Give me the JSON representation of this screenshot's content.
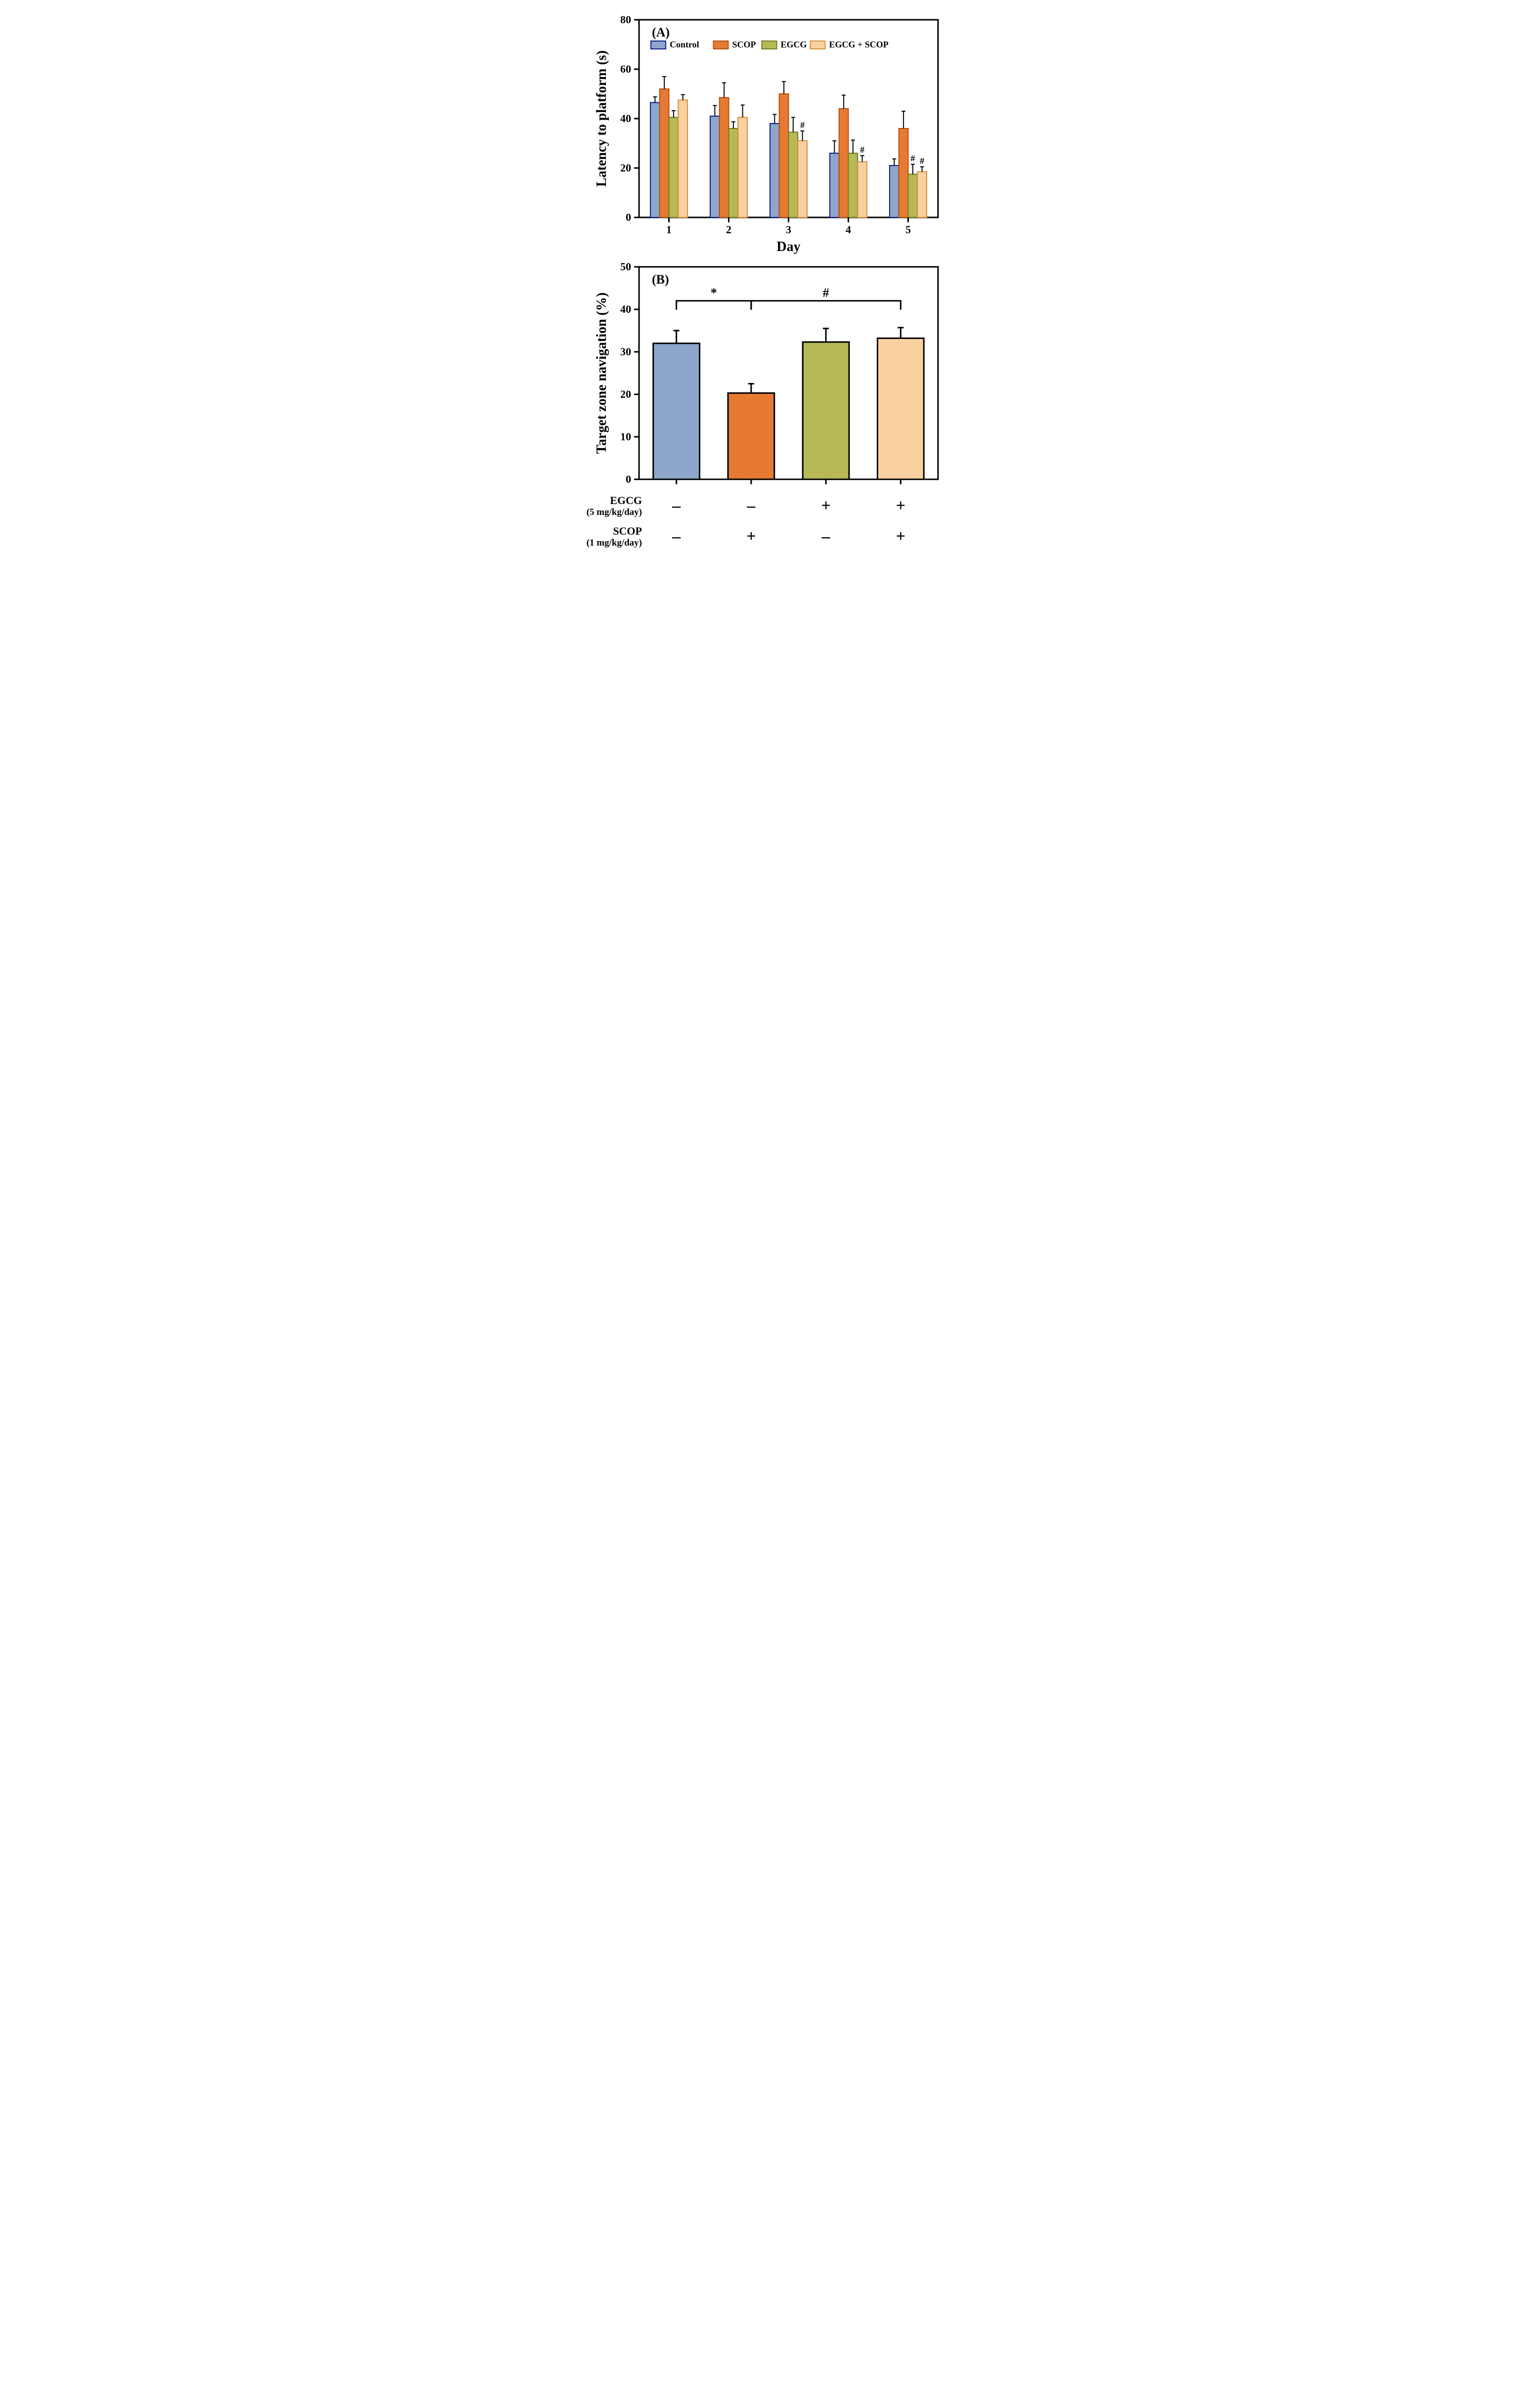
{
  "panelA": {
    "type": "bar",
    "panel_label": "(A)",
    "ylabel": "Latency to platform (s)",
    "xlabel": "Day",
    "ylim": [
      0,
      80
    ],
    "ytick_step": 20,
    "categories": [
      "1",
      "2",
      "3",
      "4",
      "5"
    ],
    "groups": [
      {
        "name": "Control",
        "color": "#8da6c9",
        "stroke": "#0f1a8a"
      },
      {
        "name": "SCOP",
        "color": "#e77a32",
        "stroke": "#b24f12"
      },
      {
        "name": "EGCG",
        "color": "#b6b955",
        "stroke": "#6f7a1e"
      },
      {
        "name": "EGCG + SCOP",
        "color": "#f9d1a0",
        "stroke": "#d88c3a"
      }
    ],
    "data": [
      {
        "day": "1",
        "vals": [
          46.5,
          52,
          40.5,
          47.5
        ],
        "errs": [
          2.3,
          5.0,
          2.7,
          2.2
        ],
        "sig": [
          "",
          "",
          "",
          ""
        ]
      },
      {
        "day": "2",
        "vals": [
          41,
          48.5,
          36,
          40.5
        ],
        "errs": [
          4.3,
          6.0,
          2.7,
          5.0
        ],
        "sig": [
          "",
          "",
          "",
          ""
        ]
      },
      {
        "day": "3",
        "vals": [
          38,
          50,
          34.5,
          31
        ],
        "errs": [
          3.7,
          5.0,
          6.0,
          4.0
        ],
        "sig": [
          "",
          "",
          "",
          "#"
        ]
      },
      {
        "day": "4",
        "vals": [
          26,
          44,
          26,
          22.5
        ],
        "errs": [
          5.0,
          5.5,
          5.3,
          2.5
        ],
        "sig": [
          "",
          "",
          "",
          "#"
        ]
      },
      {
        "day": "5",
        "vals": [
          21,
          36,
          17.5,
          18.5
        ],
        "errs": [
          2.7,
          7.0,
          4.0,
          2.0
        ],
        "sig": [
          "",
          "",
          "#",
          "#"
        ]
      }
    ],
    "legend_fontsize": 18,
    "label_fontsize": 28,
    "tick_fontsize": 22,
    "bar_stroke_width": 2,
    "err_stroke_width": 2,
    "cap_width": 8,
    "background": "#ffffff"
  },
  "panelB": {
    "type": "bar",
    "panel_label": "(B)",
    "ylabel": "Target zone navigation (%)",
    "ylim": [
      0,
      50
    ],
    "ytick_step": 10,
    "bars": [
      {
        "name": "Control",
        "val": 32,
        "err": 3.0,
        "color": "#8da6c9",
        "stroke": "#000000"
      },
      {
        "name": "SCOP",
        "val": 20.3,
        "err": 2.2,
        "color": "#e77a32",
        "stroke": "#000000"
      },
      {
        "name": "EGCG",
        "val": 32.3,
        "err": 3.2,
        "color": "#b6b955",
        "stroke": "#000000"
      },
      {
        "name": "EGCG+SCOP",
        "val": 33.2,
        "err": 2.5,
        "color": "#f9d1a0",
        "stroke": "#000000"
      }
    ],
    "sig_brackets": [
      {
        "from": 0,
        "to": 1,
        "label": "*"
      },
      {
        "from": 1,
        "to": 3,
        "label": "#"
      }
    ],
    "bracket_y": 42,
    "label_fontsize": 28,
    "tick_fontsize": 22,
    "bar_stroke_width": 3,
    "err_stroke_width": 3,
    "cap_width": 12,
    "treatment_rows": [
      {
        "label": "EGCG",
        "sub": "(5 mg/kg/day)",
        "marks": [
          "–",
          "–",
          "+",
          "+"
        ]
      },
      {
        "label": "SCOP",
        "sub": "(1 mg/kg/day)",
        "marks": [
          "–",
          "+",
          "–",
          "+"
        ]
      }
    ],
    "treatment_fontsize": 22,
    "background": "#ffffff"
  }
}
